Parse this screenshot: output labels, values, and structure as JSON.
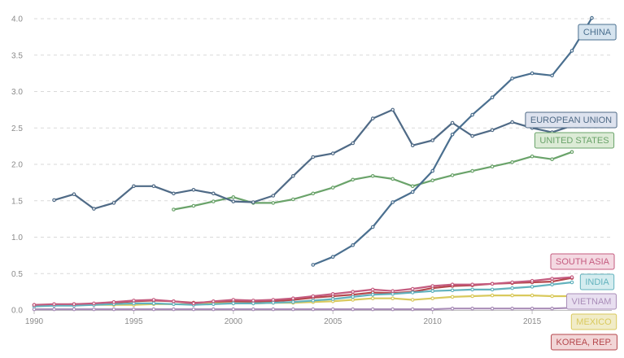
{
  "chart_data": {
    "type": "line",
    "title": "",
    "xlabel": "",
    "ylabel": "",
    "xlim": [
      1990,
      2019
    ],
    "ylim": [
      0,
      4.0
    ],
    "x_ticks": [
      1990,
      1995,
      2000,
      2005,
      2010,
      2015
    ],
    "x_tick_labels": [
      "1990",
      "1995",
      "2000",
      "2005",
      "2010",
      "2015"
    ],
    "y_ticks": [
      0,
      0.5,
      1.0,
      1.5,
      2.0,
      2.5,
      3.0,
      3.5,
      4.0
    ],
    "y_tick_labels": [
      "0.0",
      "0.5",
      "1.0",
      "1.5",
      "2.0",
      "2.5",
      "3.0",
      "3.5",
      "4.0"
    ],
    "grid": true,
    "legend": "inline labels at right end of each series",
    "series": [
      {
        "name": "CHINA",
        "color": "#4a6f8f",
        "label_bg": "#d6e4ef",
        "x": [
          2004,
          2005,
          2006,
          2007,
          2008,
          2009,
          2010,
          2011,
          2012,
          2013,
          2014,
          2015,
          2016,
          2017,
          2018
        ],
        "values": [
          0.62,
          0.73,
          0.89,
          1.14,
          1.48,
          1.62,
          1.91,
          2.41,
          2.68,
          2.92,
          3.18,
          3.25,
          3.22,
          3.56,
          4.01
        ]
      },
      {
        "name": "EUROPEAN UNION",
        "color": "#4f6a86",
        "label_bg": "#dde2ee",
        "x": [
          1991,
          1992,
          1993,
          1994,
          1995,
          1996,
          1997,
          1998,
          1999,
          2000,
          2001,
          2002,
          2003,
          2004,
          2005,
          2006,
          2007,
          2008,
          2009,
          2010,
          2011,
          2012,
          2013,
          2014,
          2015,
          2016,
          2017
        ],
        "values": [
          1.51,
          1.59,
          1.39,
          1.47,
          1.7,
          1.7,
          1.6,
          1.65,
          1.6,
          1.49,
          1.48,
          1.57,
          1.84,
          2.1,
          2.15,
          2.29,
          2.63,
          2.75,
          2.26,
          2.33,
          2.57,
          2.39,
          2.47,
          2.58,
          2.5,
          2.44,
          2.53
        ]
      },
      {
        "name": "UNITED STATES",
        "color": "#6aa36a",
        "label_bg": "#dcebd6",
        "x": [
          1997,
          1998,
          1999,
          2000,
          2001,
          2002,
          2003,
          2004,
          2005,
          2006,
          2007,
          2008,
          2009,
          2010,
          2011,
          2012,
          2013,
          2014,
          2015,
          2016,
          2017
        ],
        "values": [
          1.38,
          1.43,
          1.49,
          1.55,
          1.47,
          1.47,
          1.52,
          1.6,
          1.68,
          1.79,
          1.84,
          1.8,
          1.7,
          1.78,
          1.85,
          1.91,
          1.97,
          2.03,
          2.11,
          2.07,
          2.17
        ]
      },
      {
        "name": "SOUTH ASIA",
        "color": "#c45b7f",
        "label_bg": "#f4d9e2",
        "x": [
          1990,
          1991,
          1992,
          1993,
          1994,
          1995,
          1996,
          1997,
          1998,
          1999,
          2000,
          2001,
          2002,
          2003,
          2004,
          2005,
          2006,
          2007,
          2008,
          2009,
          2010,
          2011,
          2012,
          2013,
          2014,
          2015,
          2016,
          2017
        ],
        "values": [
          0.07,
          0.08,
          0.08,
          0.09,
          0.11,
          0.13,
          0.14,
          0.12,
          0.09,
          0.12,
          0.14,
          0.13,
          0.14,
          0.16,
          0.19,
          0.22,
          0.25,
          0.28,
          0.26,
          0.29,
          0.33,
          0.35,
          0.35,
          0.36,
          0.38,
          0.4,
          0.43,
          0.45
        ]
      },
      {
        "name": "INDIA",
        "color": "#62b2bd",
        "label_bg": "#d4ecef",
        "x": [
          1990,
          1991,
          1992,
          1993,
          1994,
          1995,
          1996,
          1997,
          1998,
          1999,
          2000,
          2001,
          2002,
          2003,
          2004,
          2005,
          2006,
          2007,
          2008,
          2009,
          2010,
          2011,
          2012,
          2013,
          2014,
          2015,
          2016,
          2017
        ],
        "values": [
          0.05,
          0.06,
          0.06,
          0.07,
          0.08,
          0.09,
          0.09,
          0.08,
          0.07,
          0.08,
          0.09,
          0.09,
          0.1,
          0.11,
          0.13,
          0.15,
          0.18,
          0.21,
          0.22,
          0.24,
          0.26,
          0.27,
          0.28,
          0.28,
          0.3,
          0.32,
          0.35,
          0.38
        ]
      },
      {
        "name": "VIETNAM",
        "color": "#a98db8",
        "label_bg": "#e8dff0",
        "x": [
          1990,
          1991,
          1992,
          1993,
          1994,
          1995,
          1996,
          1997,
          1998,
          1999,
          2000,
          2001,
          2002,
          2003,
          2004,
          2005,
          2006,
          2007,
          2008,
          2009,
          2010,
          2011,
          2012,
          2013,
          2014,
          2015,
          2016,
          2017
        ],
        "values": [
          0.01,
          0.01,
          0.01,
          0.01,
          0.01,
          0.01,
          0.01,
          0.01,
          0.01,
          0.01,
          0.01,
          0.01,
          0.01,
          0.01,
          0.01,
          0.01,
          0.01,
          0.01,
          0.01,
          0.01,
          0.01,
          0.02,
          0.02,
          0.02,
          0.02,
          0.02,
          0.02,
          0.03
        ]
      },
      {
        "name": "MEXICO",
        "color": "#d9c95c",
        "label_bg": "#f1ecc8",
        "x": [
          1993,
          1994,
          1995,
          1996,
          1997,
          1998,
          1999,
          2000,
          2001,
          2002,
          2003,
          2004,
          2005,
          2006,
          2007,
          2008,
          2009,
          2010,
          2011,
          2012,
          2013,
          2014,
          2015,
          2016,
          2017
        ],
        "values": [
          0.07,
          0.07,
          0.07,
          0.08,
          0.08,
          0.08,
          0.09,
          0.09,
          0.09,
          0.1,
          0.1,
          0.11,
          0.12,
          0.14,
          0.16,
          0.16,
          0.14,
          0.16,
          0.18,
          0.19,
          0.2,
          0.2,
          0.2,
          0.19,
          0.19
        ]
      },
      {
        "name": "KOREA, REP.",
        "color": "#b5474c",
        "label_bg": "#f2d6d7",
        "x": [
          1990,
          1991,
          1992,
          1993,
          1994,
          1995,
          1996,
          1997,
          1998,
          1999,
          2000,
          2001,
          2002,
          2003,
          2004,
          2005,
          2006,
          2007,
          2008,
          2009,
          2010,
          2011,
          2012,
          2013,
          2014,
          2015,
          2016,
          2017
        ],
        "values": [
          0.07,
          0.07,
          0.08,
          0.08,
          0.1,
          0.12,
          0.13,
          0.12,
          0.1,
          0.11,
          0.12,
          0.11,
          0.12,
          0.14,
          0.17,
          0.19,
          0.21,
          0.24,
          0.23,
          0.25,
          0.3,
          0.33,
          0.34,
          0.36,
          0.37,
          0.38,
          0.39,
          0.44
        ]
      }
    ]
  }
}
